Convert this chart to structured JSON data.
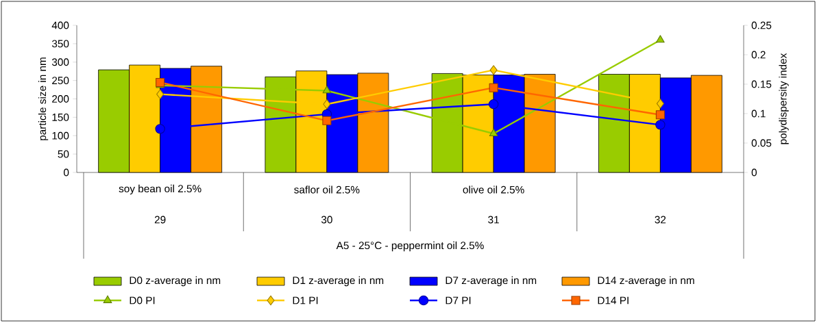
{
  "chart_data": {
    "type": "bar",
    "categories": [
      "soy bean oil 2.5%",
      "saflor oil 2.5%",
      "olive oil 2.5%",
      null
    ],
    "ylabel": "particle size in nm",
    "y2label": "polydispersity index",
    "ylim": [
      0,
      400
    ],
    "yticks": [
      0,
      50,
      100,
      150,
      200,
      250,
      300,
      350,
      400
    ],
    "y2lim": [
      0,
      0.25
    ],
    "y2ticks": [
      0,
      0.05,
      0.1,
      0.15,
      0.2,
      0.25
    ],
    "series": [
      {
        "name": "D0 z-average in nm",
        "color": "#99cc00",
        "values": [
          279,
          260,
          269,
          267
        ]
      },
      {
        "name": "D1 z-average in nm",
        "color": "#ffcc00",
        "values": [
          292,
          276,
          265,
          267
        ]
      },
      {
        "name": "D7 z-average in nm",
        "color": "#0000ff",
        "values": [
          283,
          266,
          265,
          257
        ]
      },
      {
        "name": "D14 z-average in nm",
        "color": "#ff9900",
        "values": [
          289,
          270,
          267,
          264
        ]
      },
      {
        "name": "D0 PI",
        "type": "line",
        "axis": "y2",
        "marker": "triangle",
        "color": "#99cc00",
        "values": [
          0.148,
          0.139,
          0.066,
          0.225
        ]
      },
      {
        "name": "D1 PI",
        "type": "line",
        "axis": "y2",
        "marker": "diamond",
        "color": "#ffcc00",
        "values": [
          0.133,
          0.116,
          0.174,
          0.117
        ]
      },
      {
        "name": "D7 PI",
        "type": "line",
        "axis": "y2",
        "marker": "circle",
        "color": "#0000ff",
        "values": [
          0.074,
          0.099,
          0.116,
          0.081
        ]
      },
      {
        "name": "D14 PI",
        "type": "line",
        "axis": "y2",
        "marker": "square",
        "color": "#ff6600",
        "values": [
          0.153,
          0.088,
          0.144,
          0.098
        ]
      }
    ],
    "annotations": [
      "29",
      "30",
      "31",
      "32",
      "A5 - 25°C - peppermint oil 2.5%"
    ],
    "legend": "bottom",
    "grid": false
  }
}
